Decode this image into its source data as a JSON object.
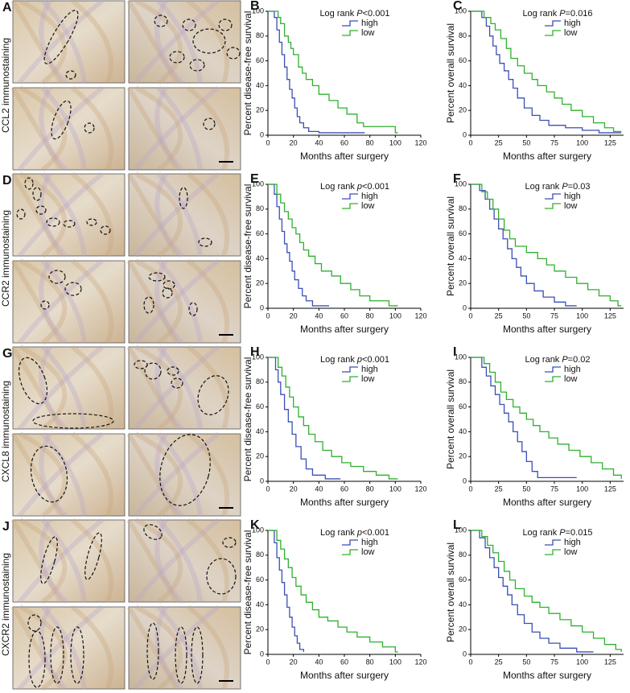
{
  "rows": [
    {
      "letter": "A",
      "stain_label": "CCL2 immunostaining"
    },
    {
      "letter": "D",
      "stain_label": "CCR2 immunostaining"
    },
    {
      "letter": "G",
      "stain_label": "CXCL8 immunostaining"
    },
    {
      "letter": "J",
      "stain_label": "CXCR2 immunostaining"
    }
  ],
  "chart_data": [
    {
      "type": "step",
      "panel": "B",
      "ylabel": "Percent disease-free survival",
      "xlabel": "Months after surgery",
      "annotation": {
        "text": "Log rank",
        "symbol": "P",
        "value": "<0.001"
      },
      "xlim": [
        0,
        120
      ],
      "xticks": [
        0,
        20,
        40,
        60,
        80,
        100,
        120
      ],
      "ylim": [
        0,
        100
      ],
      "yticks": [
        0,
        20,
        40,
        60,
        80,
        100
      ],
      "series": [
        {
          "name": "high",
          "color": "#3b4fb5",
          "x": [
            0,
            5,
            7,
            9,
            11,
            13,
            15,
            17,
            19,
            21,
            23,
            25,
            28,
            32,
            40,
            76
          ],
          "values": [
            100,
            95,
            85,
            75,
            65,
            55,
            45,
            37,
            30,
            22,
            15,
            10,
            6,
            3,
            2,
            2
          ]
        },
        {
          "name": "low",
          "color": "#2fb02f",
          "x": [
            0,
            8,
            10,
            13,
            16,
            18,
            20,
            24,
            27,
            30,
            35,
            40,
            48,
            55,
            62,
            70,
            75,
            90,
            100,
            102
          ],
          "values": [
            100,
            95,
            90,
            80,
            75,
            70,
            65,
            55,
            50,
            45,
            40,
            33,
            28,
            22,
            17,
            10,
            7,
            7,
            2,
            2
          ]
        }
      ]
    },
    {
      "type": "step",
      "panel": "C",
      "ylabel": "Percent overall survival",
      "xlabel": "Months after surgery",
      "annotation": {
        "text": "Log rank",
        "symbol": "P",
        "value": "=0.016"
      },
      "xlim": [
        0,
        137
      ],
      "xticks": [
        0,
        25,
        50,
        75,
        100,
        125
      ],
      "ylim": [
        0,
        100
      ],
      "yticks": [
        0,
        20,
        40,
        60,
        80,
        100
      ],
      "series": [
        {
          "name": "high",
          "color": "#3b4fb5",
          "x": [
            0,
            10,
            14,
            17,
            20,
            23,
            26,
            30,
            34,
            38,
            42,
            48,
            55,
            62,
            70,
            85,
            100,
            115,
            135
          ],
          "values": [
            100,
            95,
            88,
            80,
            72,
            65,
            58,
            52,
            45,
            38,
            30,
            22,
            16,
            12,
            8,
            6,
            4,
            2,
            2
          ]
        },
        {
          "name": "low",
          "color": "#2fb02f",
          "x": [
            0,
            12,
            18,
            22,
            27,
            32,
            36,
            42,
            48,
            55,
            60,
            68,
            75,
            82,
            90,
            100,
            110,
            120,
            128,
            135
          ],
          "values": [
            100,
            95,
            90,
            85,
            78,
            70,
            62,
            56,
            50,
            45,
            40,
            35,
            30,
            25,
            20,
            15,
            10,
            6,
            3,
            3
          ]
        }
      ]
    },
    {
      "type": "step",
      "panel": "E",
      "ylabel": "Percent disease-free survival",
      "xlabel": "Months after surgery",
      "annotation": {
        "text": "Log rank",
        "symbol": "p",
        "value": "<0.001"
      },
      "xlim": [
        0,
        120
      ],
      "xticks": [
        0,
        20,
        40,
        60,
        80,
        100,
        120
      ],
      "ylim": [
        0,
        100
      ],
      "yticks": [
        0,
        20,
        40,
        60,
        80,
        100
      ],
      "series": [
        {
          "name": "high",
          "color": "#3b4fb5",
          "x": [
            0,
            5,
            7,
            9,
            11,
            13,
            15,
            17,
            19,
            21,
            24,
            27,
            30,
            35,
            48
          ],
          "values": [
            100,
            92,
            82,
            72,
            62,
            52,
            45,
            38,
            30,
            23,
            16,
            10,
            6,
            2,
            2
          ]
        },
        {
          "name": "low",
          "color": "#2fb02f",
          "x": [
            0,
            7,
            10,
            13,
            16,
            19,
            22,
            25,
            28,
            32,
            37,
            42,
            50,
            57,
            65,
            72,
            80,
            95,
            102
          ],
          "values": [
            100,
            92,
            85,
            78,
            72,
            65,
            60,
            53,
            47,
            42,
            36,
            30,
            26,
            20,
            15,
            10,
            6,
            2,
            2
          ]
        }
      ]
    },
    {
      "type": "step",
      "panel": "F",
      "ylabel": "Percent overall survival",
      "xlabel": "Months after surgery",
      "annotation": {
        "text": "Log rank",
        "symbol": "P",
        "value": "=0.03"
      },
      "xlim": [
        0,
        137
      ],
      "xticks": [
        0,
        25,
        50,
        75,
        100,
        125
      ],
      "ylim": [
        0,
        100
      ],
      "yticks": [
        0,
        20,
        40,
        60,
        80,
        100
      ],
      "series": [
        {
          "name": "high",
          "color": "#3b4fb5",
          "x": [
            0,
            8,
            13,
            17,
            21,
            25,
            29,
            33,
            37,
            41,
            45,
            50,
            57,
            65,
            75,
            85,
            95
          ],
          "values": [
            100,
            95,
            88,
            80,
            72,
            64,
            56,
            48,
            40,
            33,
            26,
            20,
            14,
            9,
            5,
            2,
            2
          ]
        },
        {
          "name": "low",
          "color": "#2fb02f",
          "x": [
            0,
            10,
            15,
            20,
            25,
            30,
            35,
            40,
            50,
            60,
            68,
            75,
            85,
            95,
            105,
            115,
            125,
            132,
            135
          ],
          "values": [
            100,
            94,
            88,
            80,
            72,
            63,
            56,
            50,
            45,
            40,
            35,
            30,
            25,
            20,
            15,
            10,
            6,
            2,
            2
          ]
        }
      ]
    },
    {
      "type": "step",
      "panel": "H",
      "ylabel": "Percent disease-free survival",
      "xlabel": "Months after surgery",
      "annotation": {
        "text": "Log rank",
        "symbol": "p",
        "value": "<0.001"
      },
      "xlim": [
        0,
        120
      ],
      "xticks": [
        0,
        20,
        40,
        60,
        80,
        100,
        120
      ],
      "ylim": [
        0,
        100
      ],
      "yticks": [
        0,
        20,
        40,
        60,
        80,
        100
      ],
      "series": [
        {
          "name": "high",
          "color": "#3b4fb5",
          "x": [
            0,
            6,
            8,
            10,
            13,
            16,
            19,
            22,
            26,
            30,
            35,
            45,
            57
          ],
          "values": [
            100,
            90,
            80,
            70,
            58,
            48,
            38,
            28,
            18,
            10,
            5,
            2,
            2
          ]
        },
        {
          "name": "low",
          "color": "#2fb02f",
          "x": [
            0,
            8,
            11,
            14,
            17,
            20,
            24,
            28,
            32,
            37,
            43,
            50,
            58,
            65,
            75,
            85,
            95,
            102
          ],
          "values": [
            100,
            92,
            85,
            76,
            68,
            60,
            52,
            45,
            38,
            32,
            25,
            20,
            15,
            12,
            8,
            5,
            2,
            2
          ]
        }
      ]
    },
    {
      "type": "step",
      "panel": "I",
      "ylabel": "Percent overall survival",
      "xlabel": "Months after surgery",
      "annotation": {
        "text": "Log rank",
        "symbol": "P",
        "value": "=0.02"
      },
      "xlim": [
        0,
        137
      ],
      "xticks": [
        0,
        25,
        50,
        75,
        100,
        125
      ],
      "ylim": [
        0,
        100
      ],
      "yticks": [
        0,
        20,
        40,
        60,
        80,
        100
      ],
      "series": [
        {
          "name": "high",
          "color": "#3b4fb5",
          "x": [
            0,
            10,
            14,
            18,
            22,
            26,
            30,
            34,
            38,
            42,
            46,
            50,
            55,
            60,
            75,
            95
          ],
          "values": [
            100,
            92,
            85,
            77,
            70,
            62,
            55,
            48,
            40,
            32,
            24,
            16,
            8,
            3,
            3,
            3
          ]
        },
        {
          "name": "low",
          "color": "#2fb02f",
          "x": [
            0,
            12,
            17,
            22,
            27,
            32,
            38,
            44,
            50,
            56,
            62,
            70,
            78,
            88,
            98,
            108,
            118,
            128,
            135
          ],
          "values": [
            100,
            95,
            88,
            80,
            72,
            66,
            60,
            55,
            50,
            45,
            40,
            35,
            30,
            25,
            20,
            15,
            10,
            5,
            2
          ]
        }
      ]
    },
    {
      "type": "step",
      "panel": "K",
      "ylabel": "Percent disease-free survival",
      "xlabel": "Months after surgery",
      "annotation": {
        "text": "Log rank",
        "symbol": "p",
        "value": "<0.001"
      },
      "xlim": [
        0,
        120
      ],
      "xticks": [
        0,
        20,
        40,
        60,
        80,
        100,
        120
      ],
      "ylim": [
        0,
        100
      ],
      "yticks": [
        0,
        20,
        40,
        60,
        80,
        100
      ],
      "series": [
        {
          "name": "high",
          "color": "#3b4fb5",
          "x": [
            0,
            5,
            7,
            9,
            11,
            13,
            15,
            17,
            19,
            21,
            23,
            25,
            28
          ],
          "values": [
            100,
            90,
            78,
            68,
            58,
            48,
            38,
            30,
            22,
            15,
            9,
            4,
            2
          ]
        },
        {
          "name": "low",
          "color": "#2fb02f",
          "x": [
            0,
            7,
            10,
            13,
            16,
            19,
            22,
            26,
            30,
            35,
            40,
            47,
            55,
            62,
            70,
            80,
            90,
            100,
            102
          ],
          "values": [
            100,
            92,
            85,
            77,
            70,
            62,
            55,
            48,
            42,
            36,
            30,
            27,
            22,
            18,
            14,
            10,
            6,
            2,
            2
          ]
        }
      ]
    },
    {
      "type": "step",
      "panel": "L",
      "ylabel": "Percent overall survival",
      "xlabel": "Months after surgery",
      "annotation": {
        "text": "Log rank",
        "symbol": "P",
        "value": "=0.015"
      },
      "xlim": [
        0,
        137
      ],
      "xticks": [
        0,
        25,
        50,
        75,
        100,
        125
      ],
      "ylim": [
        0,
        100
      ],
      "yticks": [
        0,
        20,
        40,
        60,
        80,
        100
      ],
      "series": [
        {
          "name": "high",
          "color": "#3b4fb5",
          "x": [
            0,
            8,
            13,
            17,
            21,
            25,
            29,
            33,
            37,
            42,
            48,
            55,
            62,
            70,
            80,
            95,
            110
          ],
          "values": [
            100,
            94,
            86,
            78,
            70,
            62,
            55,
            48,
            40,
            32,
            25,
            18,
            13,
            9,
            5,
            2,
            2
          ]
        },
        {
          "name": "low",
          "color": "#2fb02f",
          "x": [
            0,
            10,
            15,
            20,
            25,
            30,
            35,
            40,
            48,
            55,
            62,
            70,
            80,
            90,
            100,
            110,
            120,
            130,
            135
          ],
          "values": [
            100,
            95,
            88,
            82,
            75,
            67,
            60,
            53,
            47,
            42,
            38,
            33,
            28,
            23,
            18,
            13,
            8,
            4,
            2
          ]
        }
      ]
    }
  ]
}
